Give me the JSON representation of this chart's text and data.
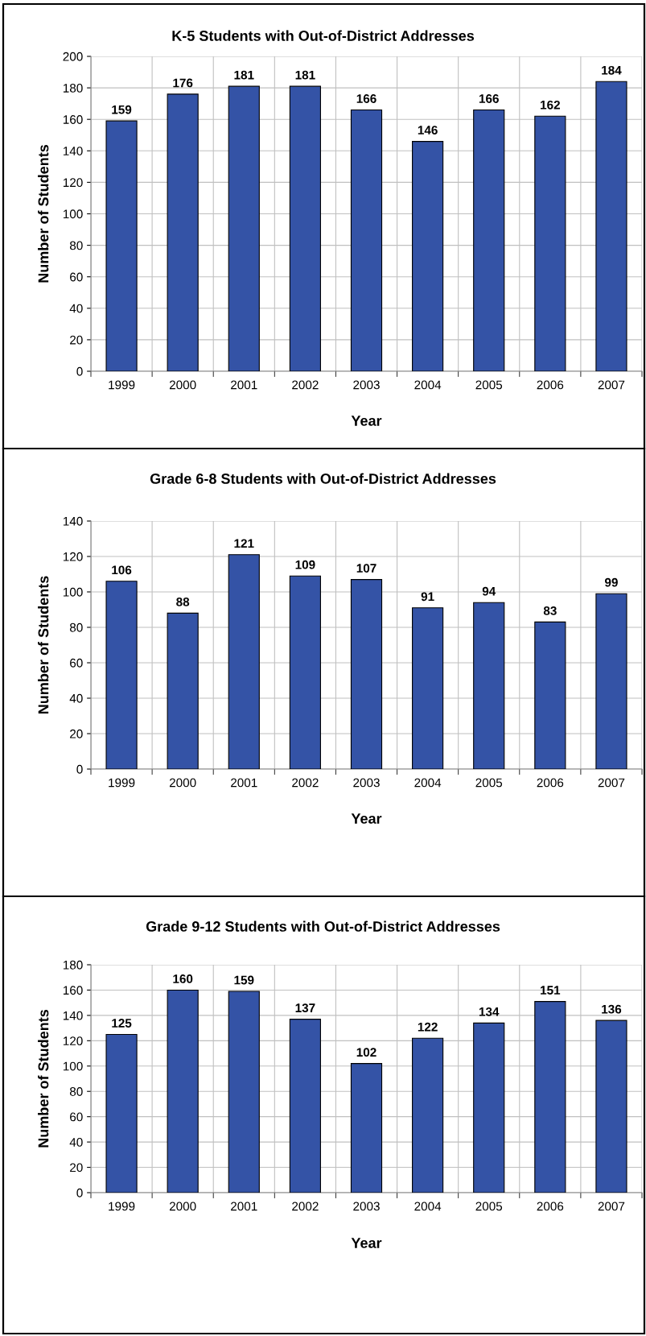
{
  "chart_data": [
    {
      "type": "bar",
      "title": "K-5 Students with Out-of-District Addresses",
      "xlabel": "Year",
      "ylabel": "Number of Students",
      "categories": [
        "1999",
        "2000",
        "2001",
        "2002",
        "2003",
        "2004",
        "2005",
        "2006",
        "2007"
      ],
      "values": [
        159,
        176,
        181,
        181,
        166,
        146,
        166,
        162,
        184
      ],
      "color": "#3453a6",
      "ylim": [
        0,
        200
      ],
      "yticks": [
        0,
        20,
        40,
        60,
        80,
        100,
        120,
        140,
        160,
        180,
        200
      ],
      "grid": true,
      "data_labels": true
    },
    {
      "type": "bar",
      "title": "Grade 6-8 Students with Out-of-District Addresses",
      "xlabel": "Year",
      "ylabel": "Number of Students",
      "categories": [
        "1999",
        "2000",
        "2001",
        "2002",
        "2003",
        "2004",
        "2005",
        "2006",
        "2007"
      ],
      "values": [
        106,
        88,
        121,
        109,
        107,
        91,
        94,
        83,
        99
      ],
      "color": "#3453a6",
      "ylim": [
        0,
        140
      ],
      "yticks": [
        0,
        20,
        40,
        60,
        80,
        100,
        120,
        140
      ],
      "grid": true,
      "data_labels": true
    },
    {
      "type": "bar",
      "title": "Grade 9-12 Students with Out-of-District Addresses",
      "xlabel": "Year",
      "ylabel": "Number of Students",
      "categories": [
        "1999",
        "2000",
        "2001",
        "2002",
        "2003",
        "2004",
        "2005",
        "2006",
        "2007"
      ],
      "values": [
        125,
        160,
        159,
        137,
        102,
        122,
        134,
        151,
        136
      ],
      "color": "#3453a6",
      "ylim": [
        0,
        180
      ],
      "yticks": [
        0,
        20,
        40,
        60,
        80,
        100,
        120,
        140,
        160,
        180
      ],
      "grid": true,
      "data_labels": true
    }
  ]
}
